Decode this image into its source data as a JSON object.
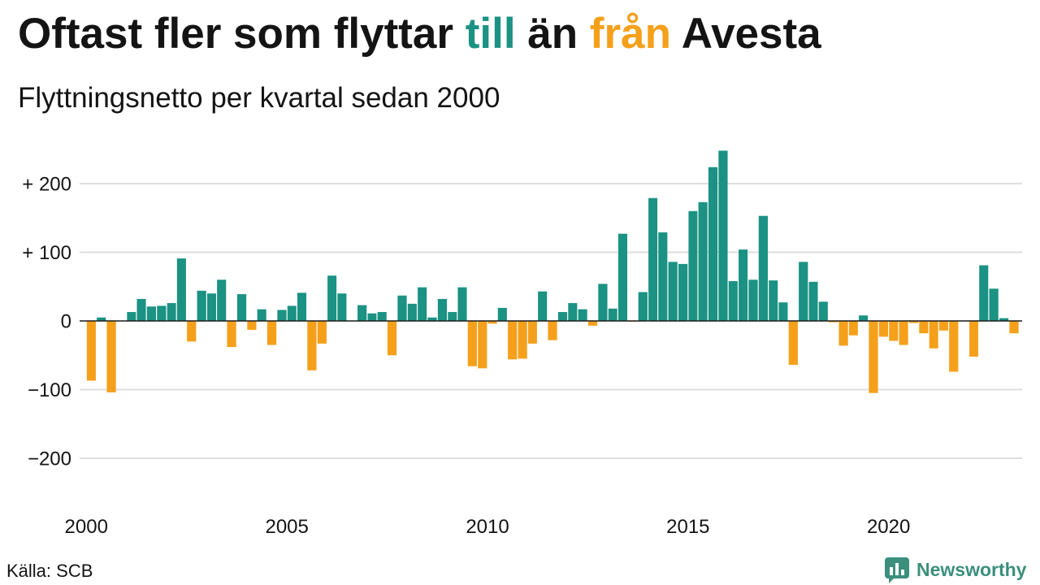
{
  "header": {
    "title": {
      "part1": "Oftast fler som flyttar ",
      "highlight_positive": "till",
      "part2": " än ",
      "highlight_negative": "från",
      "part3": " Avesta"
    },
    "subtitle": "Flyttningsnetto per kvartal sedan 2000"
  },
  "footer": {
    "source": "Källa: SCB",
    "logo_text": "Newsworthy",
    "logo_icon": "chart-bubble-icon"
  },
  "colors": {
    "positive": "#1b9283",
    "negative": "#f5a01b",
    "text": "#141414",
    "gridline": "#dedede",
    "zero_line": "#1a1a1a",
    "logo": "#3b8f7c"
  },
  "chart_data": {
    "type": "bar",
    "xlabel": "",
    "ylabel": "",
    "xlim": [
      "1999-11-01",
      "2023-05-01"
    ],
    "ylim": [
      -240,
      260
    ],
    "grid": true,
    "x_ticks": [
      {
        "date": "2000-01-01",
        "label": "2000"
      },
      {
        "date": "2005-01-01",
        "label": "2005"
      },
      {
        "date": "2010-01-01",
        "label": "2010"
      },
      {
        "date": "2015-01-01",
        "label": "2015"
      },
      {
        "date": "2020-01-01",
        "label": "2020"
      }
    ],
    "y_ticks": [
      {
        "value": 200,
        "label": "+ 200"
      },
      {
        "value": 100,
        "label": "+ 100"
      },
      {
        "value": 0,
        "label": "0"
      },
      {
        "value": -100,
        "label": "−100"
      },
      {
        "value": -200,
        "label": "−200"
      }
    ],
    "series": [
      {
        "x": [
          "2000-01-01",
          "2000-04-01",
          "2000-07-01",
          "2000-10-01",
          "2001-01-01",
          "2001-04-01",
          "2001-07-01",
          "2001-10-01",
          "2002-01-01",
          "2002-04-01",
          "2002-07-01",
          "2002-10-01",
          "2003-01-01",
          "2003-04-01",
          "2003-07-01",
          "2003-10-01",
          "2004-01-01",
          "2004-04-01",
          "2004-07-01",
          "2004-10-01",
          "2005-01-01",
          "2005-04-01",
          "2005-07-01",
          "2005-10-01",
          "2006-01-01",
          "2006-04-01",
          "2006-07-01",
          "2006-10-01",
          "2007-01-01",
          "2007-04-01",
          "2007-07-01",
          "2007-10-01",
          "2008-01-01",
          "2008-04-01",
          "2008-07-01",
          "2008-10-01",
          "2009-01-01",
          "2009-04-01",
          "2009-07-01",
          "2009-10-01",
          "2010-01-01",
          "2010-04-01",
          "2010-07-01",
          "2010-10-01",
          "2011-01-01",
          "2011-04-01",
          "2011-07-01",
          "2011-10-01",
          "2012-01-01",
          "2012-04-01",
          "2012-07-01",
          "2012-10-01",
          "2013-01-01",
          "2013-04-01",
          "2013-07-01",
          "2013-10-01",
          "2014-01-01",
          "2014-04-01",
          "2014-07-01",
          "2014-10-01",
          "2015-01-01",
          "2015-04-01",
          "2015-07-01",
          "2015-10-01",
          "2016-01-01",
          "2016-04-01",
          "2016-07-01",
          "2016-10-01",
          "2017-01-01",
          "2017-04-01",
          "2017-07-01",
          "2017-10-01",
          "2018-01-01",
          "2018-04-01",
          "2018-07-01",
          "2018-10-01",
          "2019-01-01",
          "2019-04-01",
          "2019-07-01",
          "2019-10-01",
          "2020-01-01",
          "2020-04-01",
          "2020-07-01",
          "2020-10-01",
          "2021-01-01",
          "2021-04-01",
          "2021-07-01",
          "2021-10-01",
          "2022-01-01",
          "2022-04-01",
          "2022-07-01",
          "2022-10-01",
          "2023-01-01"
        ],
        "values": [
          -87,
          5,
          -104,
          0,
          13,
          32,
          21,
          22,
          26,
          91,
          -30,
          44,
          40,
          60,
          -38,
          39,
          -13,
          17,
          -35,
          16,
          22,
          41,
          -72,
          -33,
          66,
          40,
          0,
          23,
          11,
          13,
          -50,
          37,
          25,
          49,
          5,
          32,
          13,
          49,
          -66,
          -69,
          -4,
          19,
          -56,
          -55,
          -33,
          43,
          -28,
          13,
          26,
          17,
          -7,
          54,
          18,
          127,
          -1,
          42,
          179,
          129,
          86,
          83,
          160,
          173,
          224,
          248,
          58,
          104,
          60,
          153,
          59,
          27,
          -64,
          86,
          57,
          28,
          -2,
          -36,
          -21,
          8,
          -105,
          -23,
          -29,
          -35,
          -3,
          -18,
          -40,
          -14,
          -74,
          0,
          -52,
          81,
          47,
          4,
          -18
        ]
      }
    ]
  }
}
